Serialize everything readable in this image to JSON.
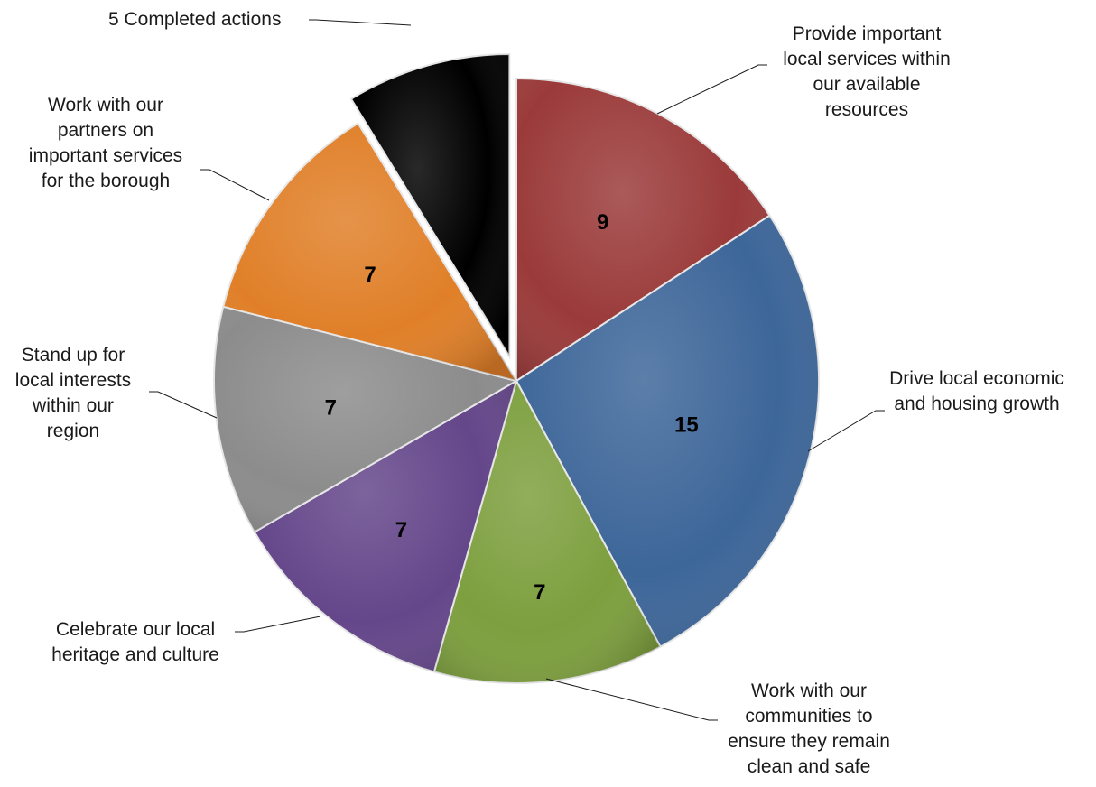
{
  "chart_data": {
    "type": "pie",
    "title": "",
    "exploded_slice": "5 Completed actions",
    "slices": [
      {
        "label": "Provide important local services within our available resources",
        "value": 9,
        "color": "#9b3a3a"
      },
      {
        "label": "Drive local economic and housing growth",
        "value": 15,
        "color": "#3d6699"
      },
      {
        "label": "Work with our communities to ensure they remain clean and safe",
        "value": 7,
        "color": "#7d9f3e"
      },
      {
        "label": "Celebrate our local heritage and culture",
        "value": 7,
        "color": "#64468a"
      },
      {
        "label": "Stand up for local interests within our region",
        "value": 7,
        "color": "#8c8c8c"
      },
      {
        "label": "Work with our partners on important services for the borough",
        "value": 7,
        "color": "#e07f28"
      },
      {
        "label": "5 Completed actions",
        "value": 5,
        "color": "#000000"
      }
    ],
    "value_labels": [
      "9",
      "15",
      "7",
      "7",
      "7",
      "7"
    ],
    "category_labels": [
      {
        "lines": [
          "Provide important",
          "local services within",
          "our available",
          "resources"
        ]
      },
      {
        "lines": [
          "Drive local economic",
          "and housing growth"
        ]
      },
      {
        "lines": [
          "Work with our",
          "communities to",
          "ensure they remain",
          "clean and safe"
        ]
      },
      {
        "lines": [
          "Celebrate our local",
          "heritage and culture"
        ]
      },
      {
        "lines": [
          "Stand up for",
          "local interests",
          "within our",
          "region"
        ]
      },
      {
        "lines": [
          "Work with our",
          "partners on",
          "important services",
          "for the borough"
        ]
      },
      {
        "lines": [
          "5 Completed actions"
        ]
      }
    ]
  }
}
